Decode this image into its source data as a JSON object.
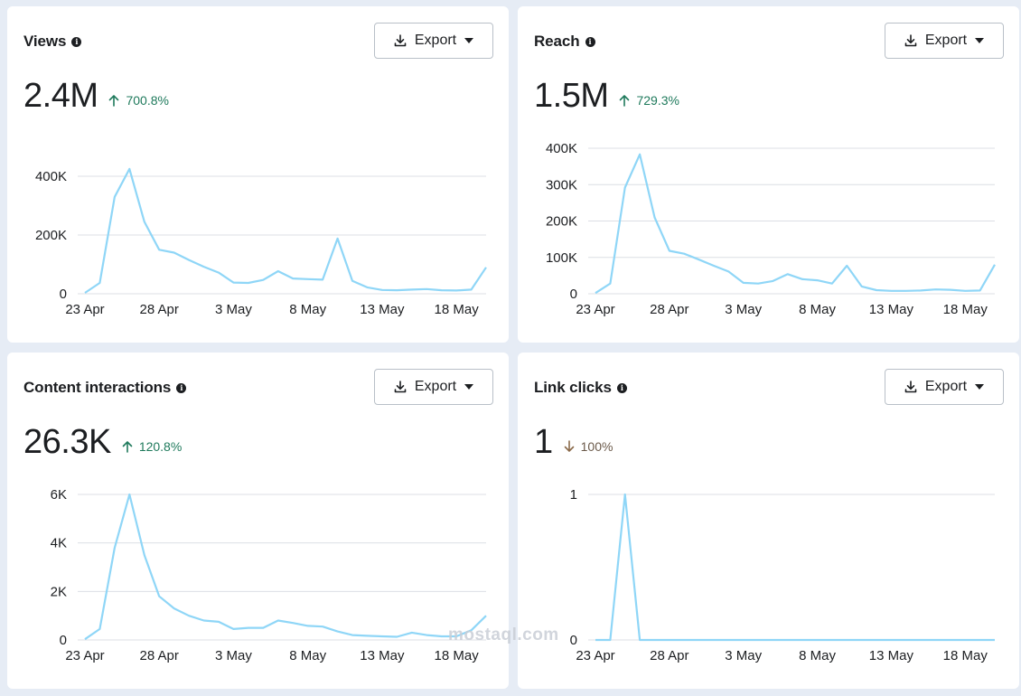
{
  "cards": [
    {
      "title": "Views",
      "info_icon": "info-icon",
      "export_label": "Export",
      "value": "2.4M",
      "change": "700.8%",
      "change_direction": "up"
    },
    {
      "title": "Reach",
      "info_icon": "info-icon",
      "export_label": "Export",
      "value": "1.5M",
      "change": "729.3%",
      "change_direction": "up"
    },
    {
      "title": "Content interactions",
      "info_icon": "info-icon",
      "export_label": "Export",
      "value": "26.3K",
      "change": "120.8%",
      "change_direction": "up"
    },
    {
      "title": "Link clicks",
      "info_icon": "info-icon",
      "export_label": "Export",
      "value": "1",
      "change": "100%",
      "change_direction": "down"
    }
  ],
  "colors": {
    "line": "#8fd6f7",
    "up": "#1f7a5c",
    "down": "#6b5a4a",
    "grid": "#dcdfe4",
    "background": "#e6ecf5"
  },
  "watermark": "mostaql.com",
  "chart_data": [
    {
      "type": "line",
      "title": "Views",
      "x": [
        "23 Apr",
        "24 Apr",
        "25 Apr",
        "26 Apr",
        "27 Apr",
        "28 Apr",
        "29 Apr",
        "30 Apr",
        "1 May",
        "2 May",
        "3 May",
        "4 May",
        "5 May",
        "6 May",
        "7 May",
        "8 May",
        "9 May",
        "10 May",
        "11 May",
        "12 May",
        "13 May",
        "14 May",
        "15 May",
        "16 May",
        "17 May",
        "18 May",
        "19 May",
        "20 May"
      ],
      "x_ticks": [
        "23 Apr",
        "28 Apr",
        "3 May",
        "8 May",
        "13 May",
        "18 May"
      ],
      "y_ticks": [
        "0",
        "200K",
        "400K"
      ],
      "y_tick_values": [
        0,
        200000,
        400000
      ],
      "ylim": [
        0,
        400000
      ],
      "series": [
        {
          "values": [
            3000,
            37000,
            330000,
            425000,
            245000,
            150000,
            140000,
            115000,
            92000,
            72000,
            38000,
            37000,
            47000,
            77000,
            52000,
            50000,
            48000,
            188000,
            44000,
            22000,
            13000,
            12000,
            14000,
            16000,
            12000,
            11000,
            14000,
            90000
          ]
        }
      ],
      "grid": true
    },
    {
      "type": "line",
      "title": "Reach",
      "x": [
        "23 Apr",
        "24 Apr",
        "25 Apr",
        "26 Apr",
        "27 Apr",
        "28 Apr",
        "29 Apr",
        "30 Apr",
        "1 May",
        "2 May",
        "3 May",
        "4 May",
        "5 May",
        "6 May",
        "7 May",
        "8 May",
        "9 May",
        "10 May",
        "11 May",
        "12 May",
        "13 May",
        "14 May",
        "15 May",
        "16 May",
        "17 May",
        "18 May",
        "19 May",
        "20 May"
      ],
      "x_ticks": [
        "23 Apr",
        "28 Apr",
        "3 May",
        "8 May",
        "13 May",
        "18 May"
      ],
      "y_ticks": [
        "0",
        "100K",
        "200K",
        "300K",
        "400K"
      ],
      "y_tick_values": [
        0,
        100000,
        200000,
        300000,
        400000
      ],
      "ylim": [
        0,
        400000
      ],
      "series": [
        {
          "values": [
            2000,
            28000,
            292000,
            383000,
            210000,
            118000,
            110000,
            94000,
            77000,
            61000,
            30000,
            28000,
            35000,
            54000,
            40000,
            37000,
            28000,
            77000,
            20000,
            10000,
            8000,
            8000,
            9000,
            12000,
            11000,
            8000,
            9000,
            80000
          ]
        }
      ],
      "grid": true
    },
    {
      "type": "line",
      "title": "Content interactions",
      "x": [
        "23 Apr",
        "24 Apr",
        "25 Apr",
        "26 Apr",
        "27 Apr",
        "28 Apr",
        "29 Apr",
        "30 Apr",
        "1 May",
        "2 May",
        "3 May",
        "4 May",
        "5 May",
        "6 May",
        "7 May",
        "8 May",
        "9 May",
        "10 May",
        "11 May",
        "12 May",
        "13 May",
        "14 May",
        "15 May",
        "16 May",
        "17 May",
        "18 May",
        "19 May",
        "20 May"
      ],
      "x_ticks": [
        "23 Apr",
        "28 Apr",
        "3 May",
        "8 May",
        "13 May",
        "18 May"
      ],
      "y_ticks": [
        "0",
        "2K",
        "4K",
        "6K"
      ],
      "y_tick_values": [
        0,
        2000,
        4000,
        6000
      ],
      "ylim": [
        0,
        6000
      ],
      "series": [
        {
          "values": [
            30,
            450,
            3800,
            6000,
            3500,
            1800,
            1300,
            1000,
            800,
            750,
            450,
            500,
            500,
            800,
            700,
            580,
            550,
            350,
            200,
            170,
            150,
            130,
            300,
            200,
            150,
            150,
            400,
            1000
          ]
        }
      ],
      "grid": true
    },
    {
      "type": "line",
      "title": "Link clicks",
      "x": [
        "23 Apr",
        "24 Apr",
        "25 Apr",
        "26 Apr",
        "27 Apr",
        "28 Apr",
        "29 Apr",
        "30 Apr",
        "1 May",
        "2 May",
        "3 May",
        "4 May",
        "5 May",
        "6 May",
        "7 May",
        "8 May",
        "9 May",
        "10 May",
        "11 May",
        "12 May",
        "13 May",
        "14 May",
        "15 May",
        "16 May",
        "17 May",
        "18 May",
        "19 May",
        "20 May"
      ],
      "x_ticks": [
        "23 Apr",
        "28 Apr",
        "3 May",
        "8 May",
        "13 May",
        "18 May"
      ],
      "y_ticks": [
        "0",
        "1"
      ],
      "y_tick_values": [
        0,
        1
      ],
      "ylim": [
        0,
        1
      ],
      "series": [
        {
          "values": [
            0,
            0,
            1,
            0,
            0,
            0,
            0,
            0,
            0,
            0,
            0,
            0,
            0,
            0,
            0,
            0,
            0,
            0,
            0,
            0,
            0,
            0,
            0,
            0,
            0,
            0,
            0,
            0
          ]
        }
      ],
      "grid": true
    }
  ]
}
